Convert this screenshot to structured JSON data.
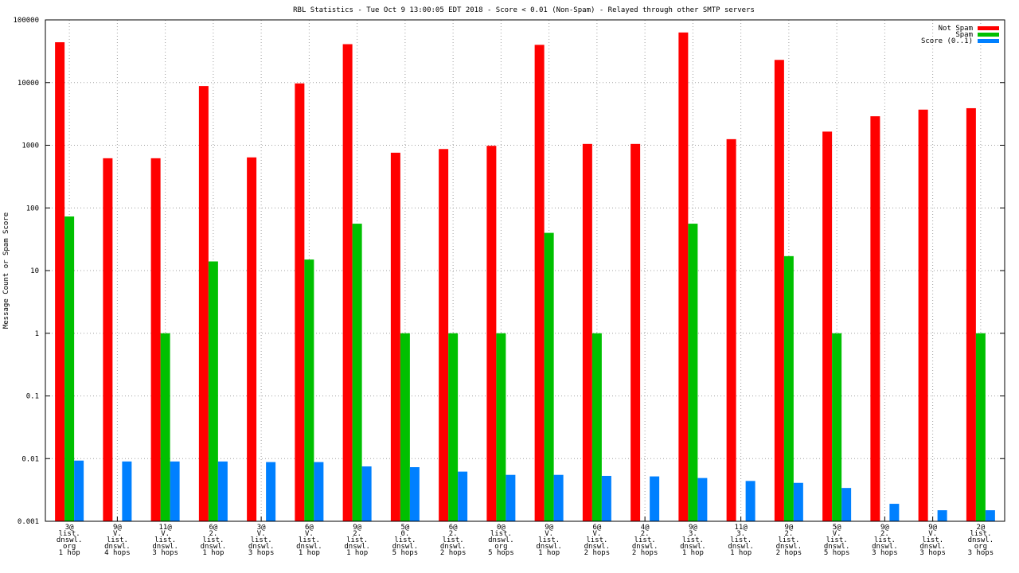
{
  "chart_data": {
    "type": "bar",
    "title": "RBL Statistics - Tue Oct  9 13:00:05 EDT 2018 - Score < 0.01 (Non-Spam) - Relayed through other SMTP servers",
    "xlabel": "",
    "ylabel": "Message Count or Spam Score",
    "yscale": "log",
    "ylim": [
      0.001,
      100000
    ],
    "yticks": [
      "0.001",
      "0.01",
      "0.1",
      "1",
      "10",
      "100",
      "1000",
      "10000",
      "100000"
    ],
    "grid": true,
    "legend_position": "top-right",
    "categories": [
      [
        "3@",
        "list.",
        "dnswl.",
        "org",
        "1 hop"
      ],
      [
        "9@",
        "V.",
        "list.",
        "dnswl.",
        "4 hops"
      ],
      [
        "11@",
        "V.",
        "list.",
        "dnswl.",
        "3 hops"
      ],
      [
        "6@",
        "2.",
        "list.",
        "dnswl.",
        "1 hop"
      ],
      [
        "3@",
        "V.",
        "list.",
        "dnswl.",
        "3 hops"
      ],
      [
        "6@",
        "V.",
        "list.",
        "dnswl.",
        "1 hop"
      ],
      [
        "9@",
        "2.",
        "list.",
        "dnswl.",
        "1 hop"
      ],
      [
        "5@",
        "0.",
        "list.",
        "dnswl.",
        "5 hops"
      ],
      [
        "6@",
        "2.",
        "list.",
        "dnswl.",
        "2 hops"
      ],
      [
        "0@",
        "list.",
        "dnswl.",
        "org",
        "5 hops"
      ],
      [
        "9@",
        "V.",
        "list.",
        "dnswl.",
        "1 hop"
      ],
      [
        "6@",
        "V.",
        "list.",
        "dnswl.",
        "2 hops"
      ],
      [
        "4@",
        "2.",
        "list.",
        "dnswl.",
        "2 hops"
      ],
      [
        "9@",
        "3.",
        "list.",
        "dnswl.",
        "1 hop"
      ],
      [
        "11@",
        "3.",
        "list.",
        "dnswl.",
        "1 hop"
      ],
      [
        "9@",
        "2.",
        "list.",
        "dnswl.",
        "2 hops"
      ],
      [
        "5@",
        "V.",
        "list.",
        "dnswl.",
        "5 hops"
      ],
      [
        "9@",
        "2.",
        "list.",
        "dnswl.",
        "3 hops"
      ],
      [
        "9@",
        "V.",
        "list.",
        "dnswl.",
        "3 hops"
      ],
      [
        "2@",
        "list.",
        "dnswl.",
        "org",
        "3 hops"
      ]
    ],
    "series": [
      {
        "name": "Not Spam",
        "color": "#ff0000",
        "values": [
          44000,
          620,
          620,
          8800,
          640,
          9700,
          41000,
          760,
          870,
          980,
          40000,
          1050,
          1050,
          63000,
          1250,
          23000,
          1650,
          2900,
          3700,
          3900
        ]
      },
      {
        "name": "Spam",
        "color": "#00c000",
        "values": [
          73,
          null,
          1,
          14,
          null,
          15,
          56,
          1,
          1,
          1,
          40,
          1,
          null,
          56,
          null,
          17,
          1,
          null,
          null,
          1
        ]
      },
      {
        "name": "Score (0..1)",
        "color": "#0080ff",
        "values": [
          0.0093,
          0.009,
          0.009,
          0.009,
          0.0088,
          0.0088,
          0.0075,
          0.0073,
          0.0062,
          0.0055,
          0.0055,
          0.0053,
          0.0052,
          0.0049,
          0.0044,
          0.0041,
          0.0034,
          0.0019,
          0.0015,
          0.0015
        ]
      }
    ]
  }
}
